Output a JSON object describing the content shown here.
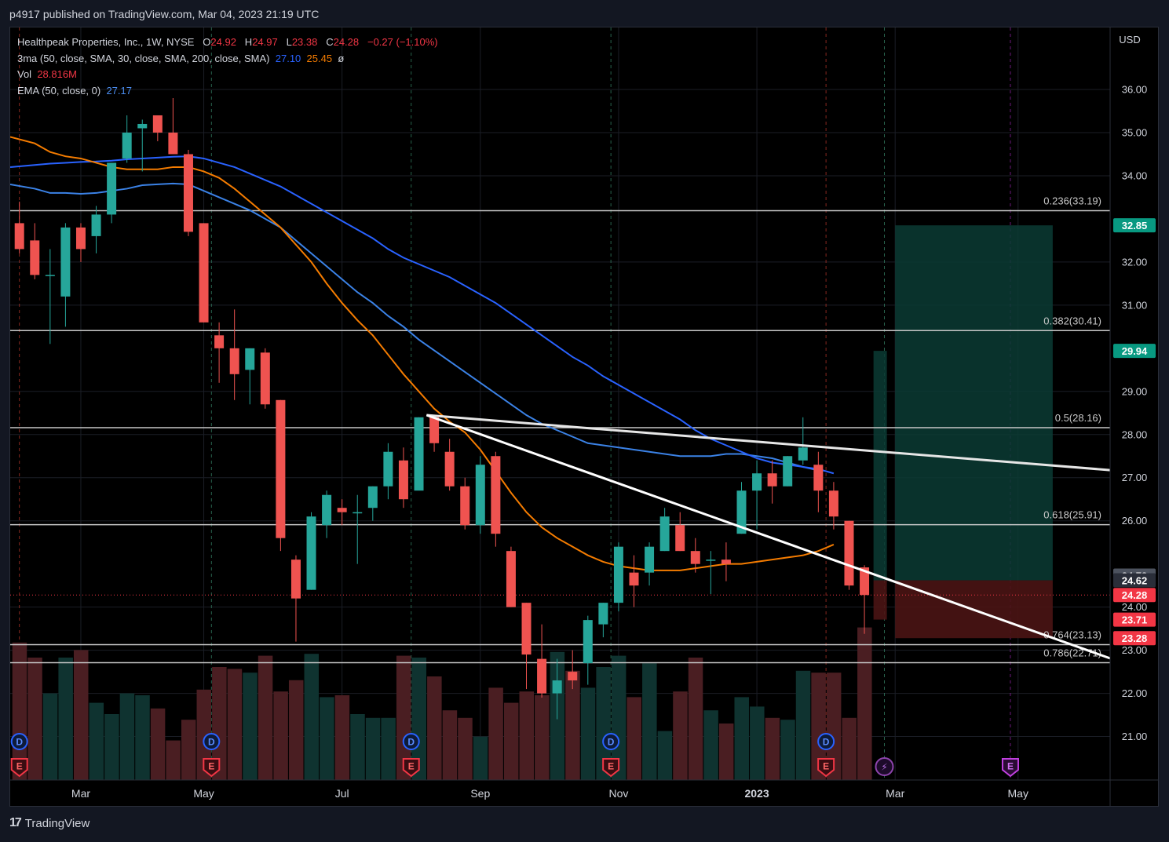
{
  "header": {
    "published": "p4917 published on TradingView.com, Mar 04, 2023 21:19 UTC"
  },
  "legend": {
    "symbol": "Healthpeak Properties, Inc., 1W, NYSE",
    "o_label": "O",
    "o": "24.92",
    "h_label": "H",
    "h": "24.97",
    "l_label": "L",
    "l": "23.38",
    "c_label": "C",
    "c": "24.28",
    "change": "−0.27 (−1.10%)",
    "ma_label": "3ma (50, close, SMA, 30, close, SMA, 200, close, SMA)",
    "ma1": "27.10",
    "ma2": "25.45",
    "ma3": "ø",
    "vol_label": "Vol",
    "vol": "28.816M",
    "ema_label": "EMA (50, close, 0)",
    "ema": "27.17"
  },
  "footer": {
    "brand": "TradingView"
  },
  "colors": {
    "up": "#26a69a",
    "down": "#ef5350",
    "sma50": "#2962ff",
    "sma30": "#f57c00",
    "ema50": "#3b82e6",
    "vol_up": "#0f3330",
    "vol_down": "#4a1e22"
  },
  "chart_data": {
    "type": "candlestick",
    "symbol": "Healthpeak Properties, Inc.",
    "interval": "1W",
    "exchange": "NYSE",
    "currency": "USD",
    "ylim": [
      20.0,
      37.0
    ],
    "y_ticks": [
      "36.00",
      "35.00",
      "34.00",
      "32.00",
      "31.00",
      "29.00",
      "28.00",
      "27.00",
      "26.00",
      "24.00",
      "23.00",
      "22.00",
      "21.00"
    ],
    "x_ticks": [
      {
        "label": "Mar",
        "i": 4
      },
      {
        "label": "May",
        "i": 12
      },
      {
        "label": "Jul",
        "i": 21
      },
      {
        "label": "Sep",
        "i": 30
      },
      {
        "label": "Nov",
        "i": 39
      },
      {
        "label": "2023",
        "i": 48,
        "bold": true
      },
      {
        "label": "Mar",
        "i": 57
      },
      {
        "label": "May",
        "i": 65
      }
    ],
    "candles": [
      {
        "o": 32.9,
        "h": 33.4,
        "l": 32.2,
        "c": 32.3
      },
      {
        "o": 32.5,
        "h": 32.9,
        "l": 31.6,
        "c": 31.7
      },
      {
        "o": 31.7,
        "h": 32.3,
        "l": 30.1,
        "c": 31.7
      },
      {
        "o": 31.2,
        "h": 32.9,
        "l": 30.5,
        "c": 32.8
      },
      {
        "o": 32.8,
        "h": 32.9,
        "l": 32.0,
        "c": 32.3
      },
      {
        "o": 32.6,
        "h": 33.3,
        "l": 32.2,
        "c": 33.1
      },
      {
        "o": 33.1,
        "h": 34.3,
        "l": 32.9,
        "c": 34.3
      },
      {
        "o": 34.4,
        "h": 35.4,
        "l": 34.3,
        "c": 35.0
      },
      {
        "o": 35.1,
        "h": 35.3,
        "l": 34.1,
        "c": 35.2
      },
      {
        "o": 35.4,
        "h": 35.4,
        "l": 34.8,
        "c": 35.0
      },
      {
        "o": 35.0,
        "h": 35.8,
        "l": 34.5,
        "c": 34.5
      },
      {
        "o": 34.5,
        "h": 34.6,
        "l": 32.6,
        "c": 32.7
      },
      {
        "o": 32.9,
        "h": 32.9,
        "l": 30.6,
        "c": 30.6
      },
      {
        "o": 30.3,
        "h": 30.6,
        "l": 29.2,
        "c": 30.0
      },
      {
        "o": 30.0,
        "h": 30.9,
        "l": 28.8,
        "c": 29.4
      },
      {
        "o": 29.5,
        "h": 30.0,
        "l": 28.7,
        "c": 30.0
      },
      {
        "o": 29.9,
        "h": 30.0,
        "l": 28.6,
        "c": 28.7
      },
      {
        "o": 28.8,
        "h": 28.8,
        "l": 25.3,
        "c": 25.6
      },
      {
        "o": 25.1,
        "h": 25.2,
        "l": 23.2,
        "c": 24.2
      },
      {
        "o": 24.4,
        "h": 26.2,
        "l": 24.4,
        "c": 26.1
      },
      {
        "o": 25.9,
        "h": 26.7,
        "l": 25.6,
        "c": 26.6
      },
      {
        "o": 26.3,
        "h": 26.5,
        "l": 25.9,
        "c": 26.2
      },
      {
        "o": 26.2,
        "h": 26.6,
        "l": 25.0,
        "c": 26.2
      },
      {
        "o": 26.3,
        "h": 26.8,
        "l": 26.0,
        "c": 26.8
      },
      {
        "o": 26.8,
        "h": 27.8,
        "l": 26.5,
        "c": 27.6
      },
      {
        "o": 27.4,
        "h": 27.7,
        "l": 26.3,
        "c": 26.5
      },
      {
        "o": 26.7,
        "h": 28.4,
        "l": 26.8,
        "c": 28.4
      },
      {
        "o": 28.4,
        "h": 28.4,
        "l": 27.6,
        "c": 27.8
      },
      {
        "o": 27.6,
        "h": 27.9,
        "l": 26.7,
        "c": 26.8
      },
      {
        "o": 26.8,
        "h": 27.0,
        "l": 25.8,
        "c": 25.9
      },
      {
        "o": 25.9,
        "h": 27.5,
        "l": 25.7,
        "c": 27.3
      },
      {
        "o": 27.5,
        "h": 27.6,
        "l": 25.4,
        "c": 25.7
      },
      {
        "o": 25.3,
        "h": 25.4,
        "l": 24.0,
        "c": 24.0
      },
      {
        "o": 24.1,
        "h": 24.1,
        "l": 22.1,
        "c": 22.9
      },
      {
        "o": 22.8,
        "h": 23.6,
        "l": 21.9,
        "c": 22.0
      },
      {
        "o": 22.0,
        "h": 22.8,
        "l": 21.4,
        "c": 22.3
      },
      {
        "o": 22.5,
        "h": 23.0,
        "l": 22.1,
        "c": 22.3
      },
      {
        "o": 22.7,
        "h": 23.8,
        "l": 22.2,
        "c": 23.7
      },
      {
        "o": 23.6,
        "h": 24.1,
        "l": 23.3,
        "c": 24.1
      },
      {
        "o": 24.1,
        "h": 25.5,
        "l": 23.9,
        "c": 25.4
      },
      {
        "o": 24.8,
        "h": 25.2,
        "l": 24.0,
        "c": 24.5
      },
      {
        "o": 24.8,
        "h": 25.5,
        "l": 24.5,
        "c": 25.4
      },
      {
        "o": 25.3,
        "h": 26.3,
        "l": 25.3,
        "c": 26.1
      },
      {
        "o": 25.9,
        "h": 26.2,
        "l": 25.3,
        "c": 25.3
      },
      {
        "o": 25.3,
        "h": 25.6,
        "l": 24.8,
        "c": 25.0
      },
      {
        "o": 25.1,
        "h": 25.3,
        "l": 24.3,
        "c": 25.1
      },
      {
        "o": 25.1,
        "h": 25.5,
        "l": 24.6,
        "c": 25.0
      },
      {
        "o": 25.7,
        "h": 26.9,
        "l": 25.7,
        "c": 26.7
      },
      {
        "o": 26.7,
        "h": 27.4,
        "l": 25.8,
        "c": 27.1
      },
      {
        "o": 27.1,
        "h": 27.4,
        "l": 26.4,
        "c": 26.8
      },
      {
        "o": 26.8,
        "h": 27.5,
        "l": 26.8,
        "c": 27.5
      },
      {
        "o": 27.4,
        "h": 28.4,
        "l": 27.3,
        "c": 27.7
      },
      {
        "o": 27.3,
        "h": 27.6,
        "l": 26.2,
        "c": 26.7
      },
      {
        "o": 26.7,
        "h": 26.9,
        "l": 25.8,
        "c": 26.1
      },
      {
        "o": 26.0,
        "h": 26.0,
        "l": 24.4,
        "c": 24.5
      },
      {
        "o": 24.92,
        "h": 24.97,
        "l": 23.38,
        "c": 24.28
      }
    ],
    "volume_levels": [
      0.73,
      0.65,
      0.46,
      0.65,
      0.69,
      0.41,
      0.35,
      0.46,
      0.45,
      0.38,
      0.21,
      0.32,
      0.48,
      0.6,
      0.59,
      0.57,
      0.66,
      0.47,
      0.53,
      0.67,
      0.44,
      0.45,
      0.35,
      0.33,
      0.33,
      0.66,
      0.65,
      0.55,
      0.37,
      0.33,
      0.23,
      0.49,
      0.41,
      0.47,
      0.45,
      0.68,
      0.58,
      0.49,
      0.6,
      0.66,
      0.44,
      0.62,
      0.26,
      0.47,
      0.65,
      0.37,
      0.3,
      0.44,
      0.39,
      0.33,
      0.32,
      0.58,
      0.57,
      0.57,
      0.33,
      0.81
    ],
    "sma50_values": [
      34.2,
      34.25,
      34.28,
      34.3,
      34.32,
      34.33,
      34.35,
      34.38,
      34.4,
      34.42,
      34.44,
      34.45,
      34.4,
      34.3,
      34.2,
      34.05,
      33.9,
      33.75,
      33.55,
      33.35,
      33.15,
      32.95,
      32.75,
      32.55,
      32.3,
      32.1,
      31.95,
      31.8,
      31.65,
      31.45,
      31.25,
      31.05,
      30.8,
      30.55,
      30.3,
      30.05,
      29.8,
      29.6,
      29.35,
      29.15,
      28.95,
      28.75,
      28.55,
      28.35,
      28.1,
      27.9,
      27.75,
      27.6,
      27.45,
      27.35,
      27.3,
      27.25,
      27.2,
      27.1
    ],
    "sma30_values": [
      34.9,
      34.75,
      34.55,
      34.45,
      34.4,
      34.3,
      34.2,
      34.15,
      34.15,
      34.15,
      34.2,
      34.2,
      34.1,
      33.95,
      33.7,
      33.4,
      33.1,
      32.8,
      32.4,
      32.0,
      31.5,
      31.05,
      30.65,
      30.3,
      29.85,
      29.4,
      29.0,
      28.6,
      28.3,
      28.05,
      27.65,
      27.15,
      26.65,
      26.2,
      25.85,
      25.6,
      25.4,
      25.2,
      25.05,
      24.95,
      24.9,
      24.85,
      24.85,
      24.85,
      24.9,
      24.95,
      25.0,
      25.0,
      25.05,
      25.1,
      25.15,
      25.2,
      25.3,
      25.45
    ],
    "ema50_values": [
      33.8,
      33.7,
      33.6,
      33.6,
      33.58,
      33.6,
      33.65,
      33.7,
      33.78,
      33.8,
      33.82,
      33.8,
      33.65,
      33.5,
      33.35,
      33.2,
      33.0,
      32.8,
      32.5,
      32.2,
      31.9,
      31.6,
      31.3,
      31.05,
      30.75,
      30.5,
      30.2,
      29.95,
      29.7,
      29.45,
      29.2,
      28.95,
      28.7,
      28.45,
      28.25,
      28.1,
      27.95,
      27.8,
      27.75,
      27.7,
      27.65,
      27.6,
      27.55,
      27.5,
      27.5,
      27.5,
      27.55,
      27.55,
      27.5,
      27.45,
      27.35,
      27.25,
      27.17
    ],
    "fibonacci": [
      {
        "label": "0.236(33.19)",
        "value": 33.19
      },
      {
        "label": "0.382(30.41)",
        "value": 30.41
      },
      {
        "label": "0.5(28.16)",
        "value": 28.16
      },
      {
        "label": "0.618(25.91)",
        "value": 25.91
      },
      {
        "label": "0.764(23.13)",
        "value": 23.13
      },
      {
        "label": "0.786(22.71)",
        "value": 22.71
      }
    ],
    "trendlines": [
      {
        "i1": 26.5,
        "v1": 28.45,
        "i2": 78.5,
        "v2": 26.96,
        "color": "#e6e6e6"
      },
      {
        "i1": 26.5,
        "v1": 28.45,
        "i2": 78.5,
        "v2": 21.86,
        "color": "#ffffff"
      }
    ],
    "position": {
      "entry": 24.62,
      "target": 32.85,
      "stop": 23.28,
      "i_start": 57,
      "i_end": 67,
      "small_target": 29.94,
      "small_stop": 23.71,
      "small_i": 56
    },
    "price_labels": [
      {
        "text": "32.85",
        "value": 32.85,
        "bg": "#089981",
        "fg": "#ffffff"
      },
      {
        "text": "29.94",
        "value": 29.94,
        "bg": "#089981",
        "fg": "#ffffff"
      },
      {
        "text": "24.73",
        "value": 24.73,
        "bg": "#4c525e",
        "fg": "#ffffff"
      },
      {
        "text": "24.62",
        "value": 24.62,
        "bg": "#2a2e39",
        "fg": "#ffffff"
      },
      {
        "text": "24.28",
        "value": 24.28,
        "bg": "#f23645",
        "fg": "#ffffff"
      },
      {
        "text": "23.71",
        "value": 23.71,
        "bg": "#f23645",
        "fg": "#ffffff"
      },
      {
        "text": "23.28",
        "value": 23.28,
        "bg": "#f23645",
        "fg": "#ffffff"
      }
    ],
    "events": [
      {
        "i": 0,
        "types": [
          "D",
          "E"
        ]
      },
      {
        "i": 12.5,
        "types": [
          "D",
          "E"
        ]
      },
      {
        "i": 25.5,
        "types": [
          "D",
          "E"
        ]
      },
      {
        "i": 38.5,
        "types": [
          "D",
          "E"
        ]
      },
      {
        "i": 52.5,
        "types": [
          "D",
          "E"
        ]
      },
      {
        "i": 56.3,
        "types": [
          "S"
        ]
      },
      {
        "i": 64.5,
        "types": [
          "F"
        ]
      }
    ]
  }
}
